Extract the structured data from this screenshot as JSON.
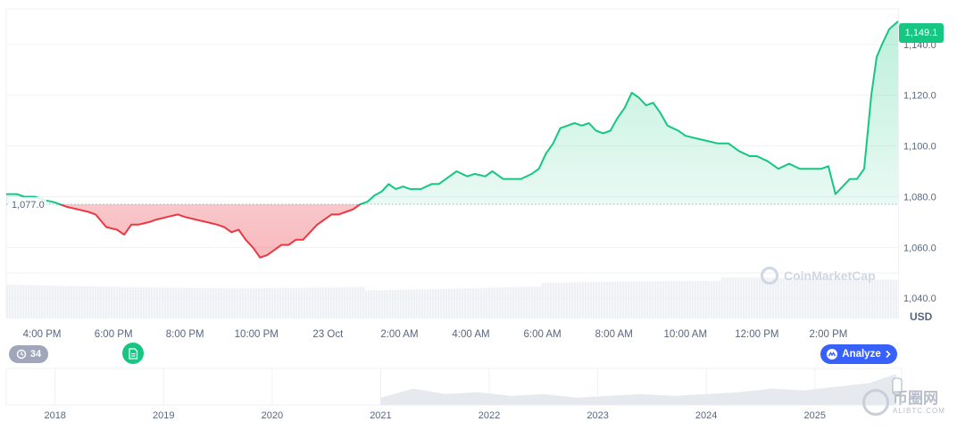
{
  "chart_data": {
    "type": "area",
    "currency_label": "USD",
    "watermark": "CoinMarketCap",
    "current_price_label": "1,149.1",
    "baseline_label": "1,077.0",
    "baseline_value": 1077.0,
    "y_ticks": [
      "1,040.0",
      "1,060.0",
      "1,080.0",
      "1,100.0",
      "1,120.0",
      "1,140.0"
    ],
    "y_tick_values": [
      1040,
      1060,
      1080,
      1100,
      1120,
      1140
    ],
    "ylim": [
      1032,
      1154
    ],
    "x_ticks": [
      "4:00 PM",
      "6:00 PM",
      "8:00 PM",
      "10:00 PM",
      "23 Oct",
      "2:00 AM",
      "4:00 AM",
      "6:00 AM",
      "8:00 AM",
      "10:00 AM",
      "12:00 PM",
      "2:00 PM"
    ],
    "x_tick_hours": [
      1,
      3,
      5,
      7,
      9,
      11,
      13,
      15,
      17,
      19,
      21,
      23
    ],
    "xlim_hours": [
      0,
      24.95
    ],
    "series": [
      {
        "x": [
          0,
          0.3,
          0.5,
          0.8,
          1.1,
          1.3,
          1.5,
          1.7,
          2.0,
          2.3,
          2.5,
          2.8,
          3.1,
          3.3,
          3.5,
          3.7,
          4.0,
          4.2,
          4.5,
          4.8,
          5.0,
          5.3,
          5.6,
          5.9,
          6.1,
          6.3,
          6.5,
          6.7,
          6.9,
          7.1,
          7.3,
          7.5,
          7.7,
          7.9,
          8.1,
          8.3,
          8.5,
          8.7,
          8.9,
          9.1,
          9.3,
          9.5,
          9.7,
          9.9,
          10.1,
          10.3,
          10.5,
          10.7,
          10.9,
          11.1,
          11.3,
          11.6,
          11.9,
          12.1,
          12.4,
          12.6,
          12.9,
          13.1,
          13.4,
          13.6,
          13.9,
          14.1,
          14.4,
          14.7,
          14.9,
          15.1,
          15.3,
          15.5,
          15.7,
          15.9,
          16.1,
          16.3,
          16.5,
          16.7,
          16.9,
          17.1,
          17.3,
          17.5,
          17.7,
          17.9,
          18.1,
          18.3,
          18.5,
          18.8,
          19.0,
          19.3,
          19.6,
          19.9,
          20.2,
          20.5,
          20.8,
          21.0,
          21.3,
          21.6,
          21.9,
          22.2,
          22.5,
          22.8,
          23.0,
          23.2,
          23.4,
          23.6,
          23.8,
          24.0,
          24.2,
          24.35,
          24.5,
          24.7,
          24.95
        ],
        "y": [
          1081,
          1081,
          1080,
          1080,
          1078.5,
          1078,
          1077,
          1076,
          1075,
          1074,
          1073,
          1068,
          1067,
          1065,
          1069,
          1069,
          1070,
          1071,
          1072,
          1073,
          1072,
          1071,
          1070,
          1069,
          1068,
          1066,
          1067,
          1063,
          1060,
          1056,
          1057,
          1059,
          1061,
          1061,
          1063,
          1063,
          1066,
          1069,
          1071,
          1073,
          1073,
          1074,
          1075,
          1077,
          1078,
          1080.5,
          1082,
          1085,
          1083,
          1084,
          1083,
          1083,
          1085,
          1085,
          1088,
          1090,
          1088,
          1089,
          1088,
          1090,
          1087,
          1087,
          1087,
          1089,
          1091,
          1097,
          1101,
          1107,
          1108,
          1109,
          1108,
          1109,
          1106,
          1105,
          1106,
          1111,
          1115,
          1121,
          1119,
          1116,
          1117,
          1113,
          1108,
          1106,
          1104,
          1103,
          1102,
          1101,
          1101,
          1098,
          1096,
          1096,
          1094,
          1091,
          1093,
          1091,
          1091,
          1091,
          1092,
          1081,
          1084,
          1087,
          1087,
          1091,
          1120,
          1135,
          1140,
          1146,
          1149.1
        ]
      }
    ],
    "volume_note": "",
    "year_ticks": [
      "2018",
      "2019",
      "2020",
      "2021",
      "2022",
      "2023",
      "2024",
      "2025"
    ],
    "year_tick_positions": [
      2018,
      2019,
      2020,
      2021,
      2022,
      2023,
      2024,
      2025
    ],
    "year_range": [
      2017.55,
      2025.8
    ],
    "navigator": {
      "x": [
        2021.0,
        2021.3,
        2021.6,
        2021.9,
        2022.2,
        2022.5,
        2022.8,
        2023.1,
        2023.4,
        2023.7,
        2024.0,
        2024.3,
        2024.6,
        2024.9,
        2025.2,
        2025.5,
        2025.75
      ],
      "y": [
        0.2,
        0.45,
        0.3,
        0.35,
        0.25,
        0.3,
        0.2,
        0.25,
        0.3,
        0.25,
        0.3,
        0.35,
        0.45,
        0.4,
        0.5,
        0.6,
        0.85
      ]
    }
  },
  "badges": {
    "history_count": "34",
    "analyze_label": "Analyze",
    "watermark_cn": "币圈网",
    "watermark_url": "ALIBTC.COM"
  },
  "colors": {
    "up": "#16c784",
    "down": "#ea3943",
    "accent": "#3861fb"
  },
  "icons": [
    "history-icon",
    "document-icon",
    "analyze-icon",
    "chevron-right-icon"
  ]
}
